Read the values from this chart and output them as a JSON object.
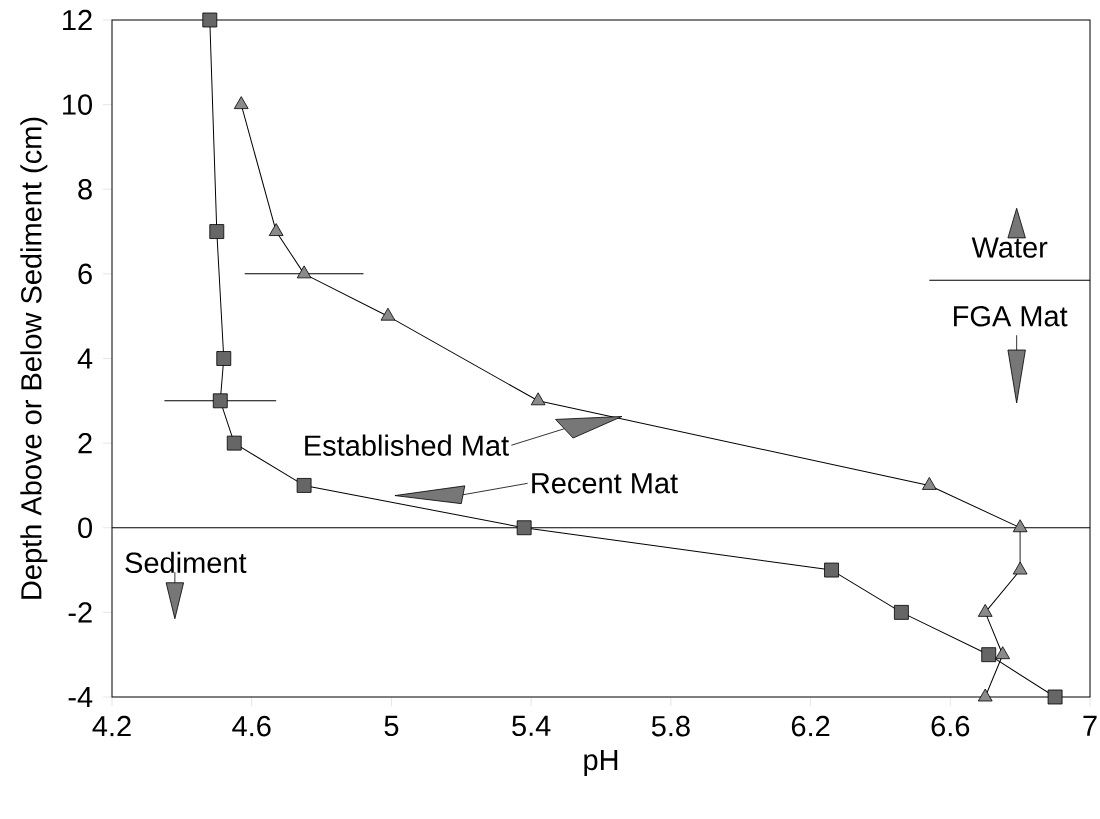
{
  "chart_data": {
    "type": "line",
    "xlabel": "pH",
    "ylabel": "Depth Above or Below Sediment (cm)",
    "xlim": [
      4.2,
      7
    ],
    "ylim": [
      -4,
      12
    ],
    "xticks": [
      4.2,
      4.6,
      5,
      5.4,
      5.8,
      6.2,
      6.6,
      7
    ],
    "yticks": [
      -4,
      -2,
      0,
      2,
      4,
      6,
      8,
      10,
      12
    ],
    "series": [
      {
        "name": "Recent Mat",
        "color": "#666666",
        "marker": "square",
        "line_style": "solid",
        "x": [
          4.48,
          4.5,
          4.52,
          4.51,
          4.55,
          4.75,
          5.38,
          6.26,
          6.46,
          6.71,
          6.9
        ],
        "values": [
          12,
          7,
          4,
          3,
          2,
          1,
          0,
          -1,
          -2,
          -3,
          -4
        ],
        "xerrors": [
          null,
          null,
          null,
          0.16,
          null,
          null,
          null,
          null,
          null,
          null,
          null
        ]
      },
      {
        "name": "Established Mat",
        "color": "#8a8a8a",
        "marker": "triangle",
        "line_style": "solid",
        "x": [
          4.57,
          4.67,
          4.75,
          4.99,
          5.42,
          6.54,
          6.8,
          6.8,
          6.7,
          6.75,
          6.7
        ],
        "values": [
          10,
          7,
          6,
          5,
          3,
          1,
          0,
          -1,
          -2,
          -3,
          -4
        ],
        "xerrors": [
          null,
          null,
          0.17,
          null,
          null,
          null,
          null,
          null,
          null,
          null,
          null
        ]
      },
      {
        "color": "#000000",
        "marker": "none",
        "line_style": "solid",
        "x": [
          6.54,
          7
        ],
        "values": [
          5.85,
          5.85
        ]
      }
    ],
    "ref_lines": [
      {
        "axis": "y",
        "value": 0,
        "color": "#000000"
      }
    ],
    "annotations": [
      "Water",
      "FGA Mat",
      "Sediment"
    ]
  }
}
